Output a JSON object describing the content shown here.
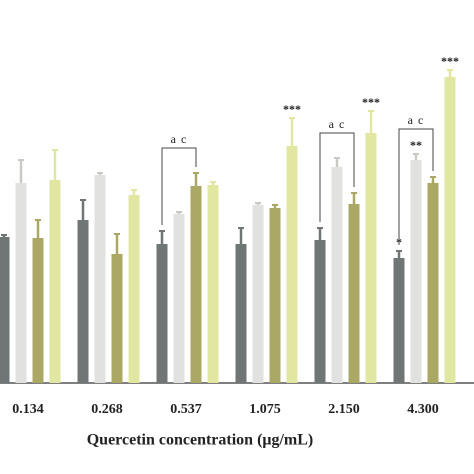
{
  "chart_data": {
    "type": "bar",
    "x_label": "Quercetin concentration  (μg/mL)",
    "categories": [
      "0.134",
      "0.268",
      "0.537",
      "1.075",
      "2.150",
      "4.300"
    ],
    "series": [
      {
        "color": "#6f7675",
        "values": [
          146,
          163,
          139,
          139,
          143,
          125
        ],
        "errors": [
          2,
          20,
          13,
          16,
          12,
          7
        ]
      },
      {
        "color": "#e1e1df",
        "values": [
          200,
          208,
          169,
          178,
          216,
          223
        ],
        "errors": [
          23,
          2,
          2,
          2,
          9,
          6
        ]
      },
      {
        "color": "#aba866",
        "values": [
          145,
          129,
          197,
          175,
          179,
          200
        ],
        "errors": [
          18,
          20,
          13,
          3,
          11,
          6
        ]
      },
      {
        "color": "#e1e7a1",
        "values": [
          203,
          188,
          198,
          237,
          250,
          306
        ],
        "errors": [
          30,
          5,
          3,
          28,
          22,
          7
        ]
      }
    ],
    "ylim": [
      0,
      333
    ],
    "annotations": [
      {
        "text": "***",
        "x": "1.075",
        "series": 3
      },
      {
        "text": "***",
        "x": "2.150",
        "series": 3
      },
      {
        "text": "***",
        "x": "4.300",
        "series": 3
      },
      {
        "text": "**",
        "x": "4.300",
        "series": 1
      },
      {
        "text": "*",
        "x": "4.300",
        "series": 0
      }
    ],
    "brackets": [
      {
        "text": "a c",
        "x": "0.537"
      },
      {
        "text": "a c",
        "x": "2.150"
      },
      {
        "text": "a c",
        "x": "4.300"
      }
    ]
  }
}
